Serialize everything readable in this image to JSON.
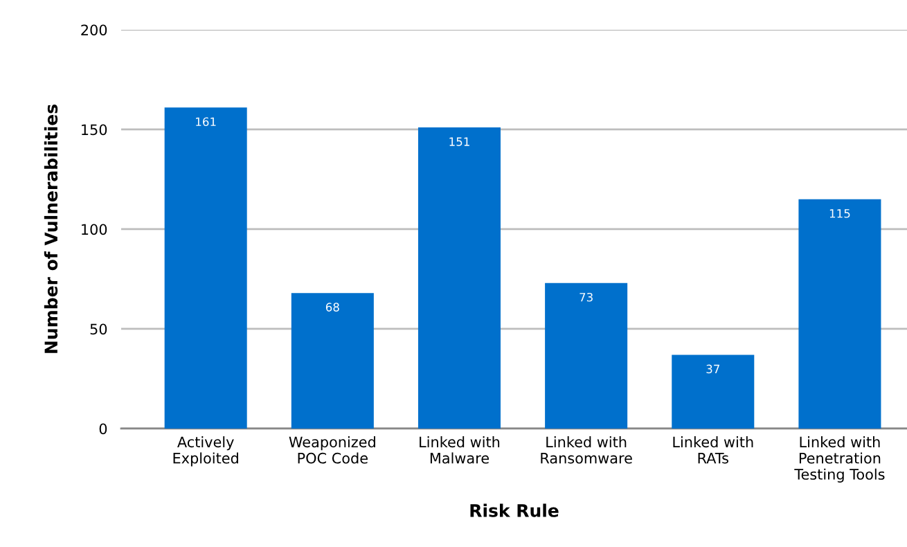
{
  "chart_data": {
    "type": "bar",
    "xlabel": "Risk Rule",
    "ylabel": "Number of Vulnerabilities",
    "categories": [
      "Actively\nExploited",
      "Weaponized\nPOC Code",
      "Linked with\nMalware",
      "Linked with\nRansomware",
      "Linked with\nRATs",
      "Linked with\nPenetration\nTesting Tools"
    ],
    "values": [
      161,
      68,
      151,
      73,
      37,
      115
    ],
    "color": "#0070cc",
    "ylim": [
      0,
      200
    ],
    "yticks": [
      0,
      50,
      100,
      150,
      200
    ],
    "grid": "y",
    "data_labels": true
  }
}
